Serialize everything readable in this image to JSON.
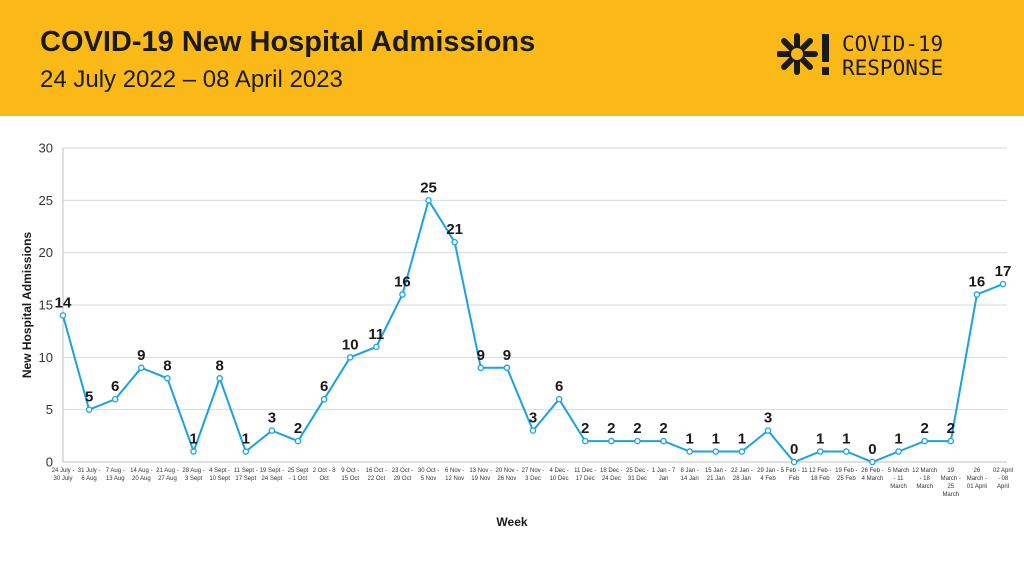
{
  "header": {
    "title": "COVID-19 New Hospital Admissions",
    "subtitle": "24 July 2022 – 08 April 2023",
    "logo_line1": "COVID-19",
    "logo_line2": "RESPONSE",
    "logo_icon": "asterisk-exclamation-icon"
  },
  "colors": {
    "banner": "#fbb917",
    "series": "#1ba1e2",
    "text": "#1a1a1a",
    "grid": "#d9d9d9"
  },
  "chart_data": {
    "type": "line",
    "xlabel": "Week",
    "ylabel": "New Hospital Admissions",
    "ylim": [
      0,
      30
    ],
    "yticks": [
      0,
      5,
      10,
      15,
      20,
      25,
      30
    ],
    "grid": true,
    "categories": [
      [
        "24 July -",
        "30 July"
      ],
      [
        "31 July -",
        "6 Aug"
      ],
      [
        "7 Aug -",
        "13 Aug"
      ],
      [
        "14 Aug -",
        "20 Aug"
      ],
      [
        "21 Aug -",
        "27 Aug"
      ],
      [
        "28 Aug -",
        "3 Sept"
      ],
      [
        "4 Sept -",
        "10 Sept"
      ],
      [
        "11 Sept -",
        "17 Sept"
      ],
      [
        "19 Sept -",
        "24 Sept"
      ],
      [
        "25 Sept",
        "- 1 Oct"
      ],
      [
        "2 Oct - 8",
        "Oct"
      ],
      [
        "9 Oct -",
        "15 Oct"
      ],
      [
        "16 Oct -",
        "22 Oct"
      ],
      [
        "23 Oct -",
        "29 Oct"
      ],
      [
        "30 Oct -",
        "5 Nov"
      ],
      [
        "6 Nov -",
        "12 Nov"
      ],
      [
        "13 Nov -",
        "19 Nov"
      ],
      [
        "20 Nov -",
        "26 Nov"
      ],
      [
        "27 Nov -",
        "3 Dec"
      ],
      [
        "4 Dec -",
        "10 Dec"
      ],
      [
        "11 Dec -",
        "17 Dec"
      ],
      [
        "18 Dec -",
        "24 Dec"
      ],
      [
        "25 Dec -",
        "31 Dec"
      ],
      [
        "1 Jan - 7",
        "Jan"
      ],
      [
        "8 Jan -",
        "14 Jan"
      ],
      [
        "15 Jan -",
        "21 Jan"
      ],
      [
        "22 Jan -",
        "28 Jan"
      ],
      [
        "29 Jan -",
        "4 Feb"
      ],
      [
        "5 Feb - 11",
        "Feb"
      ],
      [
        "12 Feb -",
        "18 Feb"
      ],
      [
        "19 Feb -",
        "25 Feb"
      ],
      [
        "26 Feb -",
        "4 March"
      ],
      [
        "5 March",
        "- 11",
        "March"
      ],
      [
        "12 March",
        "- 18",
        "March"
      ],
      [
        "19",
        "March -",
        "25",
        "March"
      ],
      [
        "26",
        "March -",
        "01 April"
      ],
      [
        "02 April",
        "- 08",
        "April"
      ]
    ],
    "series": [
      {
        "values": [
          14,
          5,
          6,
          9,
          8,
          1,
          8,
          1,
          3,
          2,
          6,
          10,
          11,
          16,
          25,
          21,
          9,
          9,
          3,
          6,
          2,
          2,
          2,
          2,
          1,
          1,
          1,
          3,
          0,
          1,
          1,
          0,
          1,
          2,
          2,
          16,
          17
        ]
      }
    ]
  }
}
